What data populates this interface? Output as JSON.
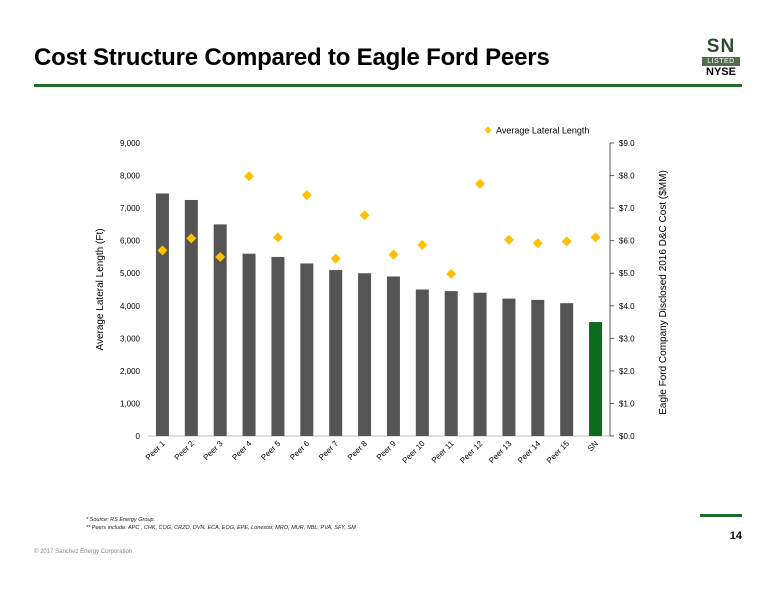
{
  "slide": {
    "title": "Cost Structure Compared to Eagle Ford Peers",
    "footnote1": "* Source: RS Energy Group.",
    "footnote2": "** Peers include: APC , CHK, COG, CRZO, DVN, ECA, EOG, EPE, Lonestar, MRO, MUR, NBL, PVA, SFY, SM",
    "page_number": "14",
    "copyright": "© 2017 Sanchez Energy Corporation"
  },
  "logo": {
    "ticker": "SN",
    "listed": "LISTED",
    "exchange": "NYSE"
  },
  "colors": {
    "accent_green": "#1e6b2a",
    "bar_gray": "#555555",
    "bar_highlight": "#0c6a1c",
    "marker": "#ffc000"
  },
  "chart_data": {
    "type": "bar",
    "categories": [
      "Peer 1",
      "Peer 2",
      "Peer 3",
      "Peer 4",
      "Peer 5",
      "Peer 6",
      "Peer 7",
      "Peer 8",
      "Peer 9",
      "Peer 10",
      "Peer 11",
      "Peer 12",
      "Peer 13",
      "Peer 14",
      "Peer 15",
      "SN"
    ],
    "series": [
      {
        "values": [
          7.45,
          7.25,
          6.5,
          5.6,
          5.5,
          5.3,
          5.1,
          5.0,
          4.9,
          4.5,
          4.45,
          4.4,
          4.22,
          4.18,
          4.08,
          3.5
        ],
        "axis": "right",
        "marker": "bar",
        "highlight_last": true
      },
      {
        "name": "Average Lateral Length",
        "values": [
          5700,
          6070,
          5500,
          7980,
          6100,
          7400,
          5450,
          6780,
          5570,
          5870,
          4980,
          7750,
          6030,
          5920,
          5980,
          6100
        ],
        "axis": "left",
        "marker": "diamond"
      }
    ],
    "ylabel": "Average Lateral Length (Ft)",
    "ylabel_right": "Eagle Ford Company Disclosed 2016 D&C Cost ($MM)",
    "ylim": [
      0,
      9000
    ],
    "ylim_right": [
      0,
      9
    ],
    "yticks": [
      "0",
      "1,000",
      "2,000",
      "3,000",
      "4,000",
      "5,000",
      "6,000",
      "7,000",
      "8,000",
      "9,000"
    ],
    "yticks_right": [
      "$0.0",
      "$1.0",
      "$2.0",
      "$3.0",
      "$4.0",
      "$5.0",
      "$6.0",
      "$7.0",
      "$8.0",
      "$9.0"
    ],
    "legend": "top-right",
    "grid": false
  }
}
